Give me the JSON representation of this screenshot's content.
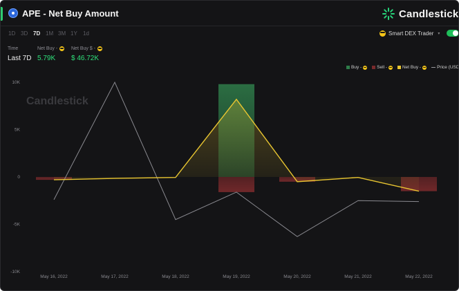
{
  "header": {
    "title": "APE - Net Buy Amount",
    "brand_name": "Candlestick",
    "accent_color": "#2ecc71",
    "token_icon": "ape-token-icon"
  },
  "time_ranges": [
    {
      "label": "1D",
      "active": false
    },
    {
      "label": "3D",
      "active": false
    },
    {
      "label": "7D",
      "active": true
    },
    {
      "label": "1M",
      "active": false
    },
    {
      "label": "3M",
      "active": false
    },
    {
      "label": "1Y",
      "active": false
    },
    {
      "label": "1d",
      "active": false
    }
  ],
  "trader_filter": {
    "label": "Smart DEX Trader",
    "toggle_on": true
  },
  "stats": {
    "time_label": "Time",
    "time_value": "Last 7D",
    "net_buy_label": "Net Buy -",
    "net_buy_value": "5.79K",
    "net_buy_usd_label": "Net Buy $ -",
    "net_buy_usd_value": "$ 46.72K"
  },
  "legend": [
    {
      "label": "Buy -",
      "color": "#2f7d4a",
      "emoji": true
    },
    {
      "label": "Sell -",
      "color": "#7a2a2c",
      "emoji": true
    },
    {
      "label": "Net Buy -",
      "color": "#e8c531",
      "emoji": true
    },
    {
      "label": "Price (USD)",
      "color": "#9a9aa0",
      "emoji": false
    }
  ],
  "chart_data": {
    "type": "bar",
    "watermark": "Candlestick",
    "categories": [
      "May 16, 2022",
      "May 17, 2022",
      "May 18, 2022",
      "May 19, 2022",
      "May 20, 2022",
      "May 21, 2022",
      "May 22, 2022"
    ],
    "ylim": [
      -10000,
      10000
    ],
    "yticks": [
      {
        "value": 10000,
        "label": "10K"
      },
      {
        "value": 5000,
        "label": "5K"
      },
      {
        "value": 0,
        "label": "0"
      },
      {
        "value": -5000,
        "label": "-5K"
      },
      {
        "value": -10000,
        "label": "-10K"
      }
    ],
    "series": [
      {
        "name": "Buy -",
        "kind": "bar",
        "color": "#2f7d4a",
        "values": [
          0,
          0,
          0,
          9800,
          0,
          0,
          0
        ]
      },
      {
        "name": "Sell -",
        "kind": "bar",
        "color": "#7a2a2c",
        "values": [
          -300,
          0,
          0,
          -1600,
          -500,
          0,
          -1500
        ]
      },
      {
        "name": "Net Buy -",
        "kind": "line",
        "color": "#e8c531",
        "values": [
          -300,
          -150,
          -50,
          8200,
          -500,
          -50,
          -1500
        ]
      },
      {
        "name": "Price (USD)",
        "kind": "line",
        "color": "#8a8a90",
        "values": [
          -2400,
          10000,
          -4500,
          -1600,
          -6300,
          -2500,
          -2600
        ]
      }
    ],
    "grid": false
  }
}
